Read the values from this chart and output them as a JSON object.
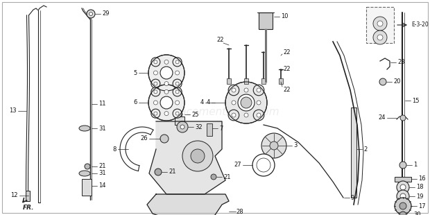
{
  "bg_color": "#ffffff",
  "line_color": "#222222",
  "label_color": "#111111",
  "watermark": "eReplacementParts.com",
  "watermark_alpha": 0.25,
  "border_color": "#888888",
  "figsize": [
    6.2,
    3.1
  ],
  "dpi": 100
}
